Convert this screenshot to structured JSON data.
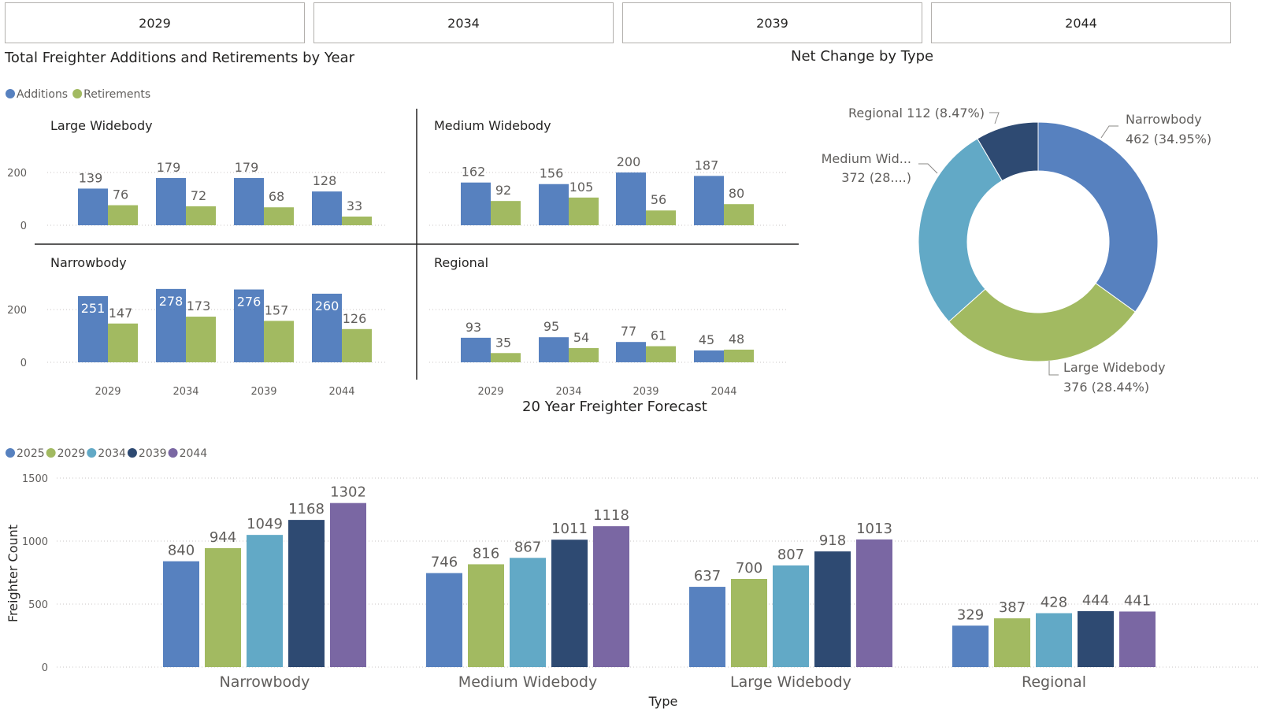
{
  "slicer": {
    "items": [
      "2029",
      "2034",
      "2039",
      "2044"
    ]
  },
  "colors": {
    "additions": "#5781bf",
    "retirements": "#a2ba61",
    "y2025": "#5781bf",
    "y2029": "#a2ba61",
    "y2034": "#62a9c6",
    "y2039": "#2e4a72",
    "y2044": "#7a67a3"
  },
  "titles": {
    "small_multiples": "Total Freighter Additions and Retirements by Year",
    "donut": "Net Change by Type",
    "forecast": "20 Year Freighter Forecast"
  },
  "chart_data": [
    {
      "type": "bar",
      "title": "Total Freighter Additions and Retirements by Year",
      "legend": {
        "position": "top-left",
        "entries": [
          "Additions",
          "Retirements"
        ]
      },
      "categories": [
        "2029",
        "2034",
        "2039",
        "2044"
      ],
      "yticks": [
        0,
        200
      ],
      "ylim": [
        0,
        290
      ],
      "grid": true,
      "panels": [
        {
          "name": "Large Widebody",
          "series": [
            {
              "name": "Additions",
              "values": [
                139,
                179,
                179,
                128
              ]
            },
            {
              "name": "Retirements",
              "values": [
                76,
                72,
                68,
                33
              ]
            }
          ]
        },
        {
          "name": "Medium Widebody",
          "series": [
            {
              "name": "Additions",
              "values": [
                162,
                156,
                200,
                187
              ]
            },
            {
              "name": "Retirements",
              "values": [
                92,
                105,
                56,
                80
              ]
            }
          ]
        },
        {
          "name": "Narrowbody",
          "series": [
            {
              "name": "Additions",
              "values": [
                251,
                278,
                276,
                260
              ]
            },
            {
              "name": "Retirements",
              "values": [
                147,
                173,
                157,
                126
              ]
            }
          ]
        },
        {
          "name": "Regional",
          "series": [
            {
              "name": "Additions",
              "values": [
                93,
                95,
                77,
                45
              ]
            },
            {
              "name": "Retirements",
              "values": [
                35,
                54,
                61,
                48
              ]
            }
          ]
        }
      ]
    },
    {
      "type": "pie",
      "title": "Net Change by Type",
      "donut": true,
      "slices": [
        {
          "name": "Narrowbody",
          "value": 462,
          "label_name": "Narrowbody",
          "label_value": "462 (34.95%)"
        },
        {
          "name": "Large Widebody",
          "value": 376,
          "label_name": "Large Widebody",
          "label_value": "376 (28.44%)"
        },
        {
          "name": "Medium Widebody",
          "value": 372,
          "label_name": "Medium Wid...",
          "label_value": "372 (28....)"
        },
        {
          "name": "Regional",
          "value": 112,
          "label_name": "Regional 112 (8.47%)",
          "label_value": ""
        }
      ]
    },
    {
      "type": "bar",
      "title": "20 Year Freighter Forecast",
      "xlabel": "Type",
      "ylabel": "Freighter Count",
      "legend": {
        "position": "top-left",
        "entries": [
          "2025",
          "2029",
          "2034",
          "2039",
          "2044"
        ]
      },
      "categories": [
        "Narrowbody",
        "Medium Widebody",
        "Large Widebody",
        "Regional"
      ],
      "yticks": [
        0,
        500,
        1000,
        1500
      ],
      "ylim": [
        0,
        1500
      ],
      "grid": true,
      "series": [
        {
          "name": "2025",
          "values": [
            840,
            746,
            637,
            329
          ]
        },
        {
          "name": "2029",
          "values": [
            944,
            816,
            700,
            387
          ]
        },
        {
          "name": "2034",
          "values": [
            1049,
            867,
            807,
            428
          ]
        },
        {
          "name": "2039",
          "values": [
            1168,
            1011,
            918,
            444
          ]
        },
        {
          "name": "2044",
          "values": [
            1302,
            1118,
            1013,
            441
          ]
        }
      ]
    }
  ]
}
